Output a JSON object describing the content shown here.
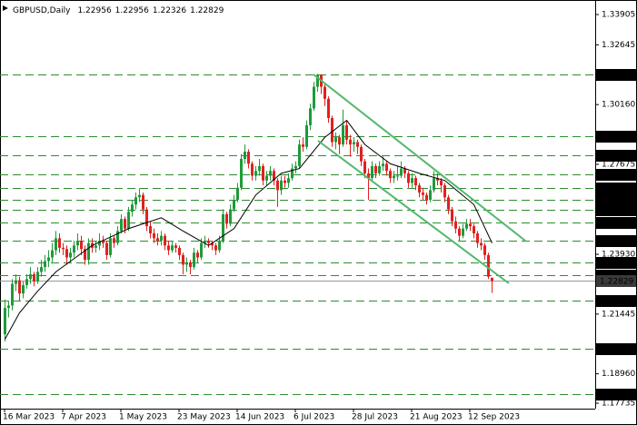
{
  "chart_data": {
    "type": "candlestick",
    "symbol": "GBPUSD,Daily",
    "ylim": [
      1.1751,
      1.3451
    ],
    "yticks": [
      1.33905,
      1.32645,
      {
        "value": 1.3016,
        "label": "1.30160"
      },
      1.27675,
      {
        "value": 1.2393,
        "label": "1.23930"
      },
      1.21445,
      {
        "value": 1.1896,
        "label": "1.18960"
      },
      1.17735
    ],
    "up_color": "#1f9a3a",
    "down_color": "#e0211f",
    "level_color": "#2e8b2e",
    "levels": [
      {
        "value": 1.314,
        "label": "1.31400"
      },
      {
        "value": 1.2885,
        "label": "1.28850"
      },
      {
        "value": 1.2805,
        "label": "1.28050"
      },
      {
        "value": 1.2727,
        "label": "1.27270"
      },
      {
        "value": 1.267,
        "label": "1.26700"
      },
      {
        "value": 1.262,
        "label": "1.26200"
      },
      {
        "value": 1.258,
        "label": "1.25800"
      },
      {
        "value": 1.2525,
        "label": "1.25250"
      },
      {
        "value": 1.245,
        "label": "1.24500"
      },
      {
        "value": 1.236,
        "label": "1.23600"
      },
      {
        "value": 1.2305,
        "label": "1.23050"
      },
      {
        "value": 1.22,
        "label": "1.22000"
      },
      {
        "value": 1.2,
        "label": "1.20000"
      },
      {
        "value": 1.181,
        "label": "1.18100"
      }
    ],
    "last_price": 1.22829,
    "categories": [
      "16 Mar 2023",
      null,
      null,
      null,
      null,
      null,
      null,
      null,
      null,
      null,
      null,
      null,
      null,
      null,
      null,
      null,
      "7 Apr 2023",
      null,
      null,
      null,
      null,
      null,
      null,
      null,
      null,
      null,
      null,
      null,
      null,
      null,
      null,
      null,
      "1 May 2023",
      null,
      null,
      null,
      null,
      null,
      null,
      null,
      null,
      null,
      null,
      null,
      null,
      null,
      null,
      null,
      "23 May 2023",
      null,
      null,
      null,
      null,
      null,
      null,
      null,
      null,
      null,
      null,
      null,
      null,
      null,
      null,
      null,
      "14 Jun 2023",
      null,
      null,
      null,
      null,
      null,
      null,
      null,
      null,
      null,
      null,
      null,
      null,
      null,
      null,
      null,
      "6 Jul 2023",
      null,
      null,
      null,
      null,
      null,
      null,
      null,
      null,
      null,
      null,
      null,
      null,
      null,
      null,
      null,
      "28 Jul 2023",
      null,
      null,
      null,
      null,
      null,
      null,
      null,
      null,
      null,
      null,
      null,
      null,
      null,
      null,
      null,
      "21 Aug 2023",
      null,
      null,
      null,
      null,
      null,
      null,
      null,
      null,
      null,
      null,
      null,
      null,
      null,
      null,
      null,
      "12 Sep 2023",
      null,
      null,
      null,
      null,
      null,
      null
    ],
    "candles": [
      [
        1.206,
        1.2205,
        1.203,
        1.217
      ],
      [
        1.217,
        1.22,
        1.213,
        1.218
      ],
      [
        1.218,
        1.229,
        1.216,
        1.227
      ],
      [
        1.227,
        1.231,
        1.224,
        1.2285
      ],
      [
        1.2285,
        1.23,
        1.22,
        1.223
      ],
      [
        1.223,
        1.228,
        1.221,
        1.2265
      ],
      [
        1.2265,
        1.231,
        1.225,
        1.229
      ],
      [
        1.229,
        1.234,
        1.227,
        1.231
      ],
      [
        1.231,
        1.232,
        1.226,
        1.228
      ],
      [
        1.228,
        1.234,
        1.227,
        1.232
      ],
      [
        1.232,
        1.237,
        1.23,
        1.234
      ],
      [
        1.234,
        1.239,
        1.232,
        1.2365
      ],
      [
        1.2365,
        1.241,
        1.234,
        1.238
      ],
      [
        1.238,
        1.244,
        1.236,
        1.241
      ],
      [
        1.241,
        1.249,
        1.239,
        1.246
      ],
      [
        1.246,
        1.248,
        1.24,
        1.242
      ],
      [
        1.242,
        1.244,
        1.239,
        1.2415
      ],
      [
        1.2415,
        1.243,
        1.235,
        1.238
      ],
      [
        1.238,
        1.242,
        1.236,
        1.24
      ],
      [
        1.24,
        1.245,
        1.238,
        1.243
      ],
      [
        1.243,
        1.248,
        1.241,
        1.245
      ],
      [
        1.245,
        1.247,
        1.239,
        1.2415
      ],
      [
        1.2415,
        1.243,
        1.235,
        1.237
      ],
      [
        1.237,
        1.246,
        1.235,
        1.244
      ],
      [
        1.244,
        1.246,
        1.24,
        1.242
      ],
      [
        1.242,
        1.245,
        1.24,
        1.243
      ],
      [
        1.243,
        1.248,
        1.241,
        1.245
      ],
      [
        1.245,
        1.247,
        1.242,
        1.244
      ],
      [
        1.244,
        1.245,
        1.237,
        1.239
      ],
      [
        1.239,
        1.248,
        1.238,
        1.246
      ],
      [
        1.246,
        1.247,
        1.242,
        1.244
      ],
      [
        1.244,
        1.251,
        1.243,
        1.249
      ],
      [
        1.249,
        1.256,
        1.248,
        1.254
      ],
      [
        1.254,
        1.255,
        1.248,
        1.25
      ],
      [
        1.25,
        1.259,
        1.249,
        1.257
      ],
      [
        1.257,
        1.262,
        1.255,
        1.26
      ],
      [
        1.26,
        1.265,
        1.258,
        1.263
      ],
      [
        1.263,
        1.2668,
        1.261,
        1.264
      ],
      [
        1.264,
        1.265,
        1.256,
        1.258
      ],
      [
        1.258,
        1.259,
        1.249,
        1.251
      ],
      [
        1.251,
        1.253,
        1.246,
        1.248
      ],
      [
        1.248,
        1.25,
        1.244,
        1.246
      ],
      [
        1.246,
        1.248,
        1.243,
        1.245
      ],
      [
        1.245,
        1.249,
        1.243,
        1.247
      ],
      [
        1.247,
        1.248,
        1.241,
        1.243
      ],
      [
        1.243,
        1.245,
        1.239,
        1.241
      ],
      [
        1.241,
        1.245,
        1.24,
        1.243
      ],
      [
        1.243,
        1.244,
        1.24,
        1.242
      ],
      [
        1.242,
        1.243,
        1.237,
        1.239
      ],
      [
        1.239,
        1.24,
        1.231,
        1.235
      ],
      [
        1.235,
        1.238,
        1.232,
        1.236
      ],
      [
        1.236,
        1.237,
        1.231,
        1.234
      ],
      [
        1.234,
        1.242,
        1.233,
        1.24
      ],
      [
        1.24,
        1.241,
        1.236,
        1.238
      ],
      [
        1.238,
        1.246,
        1.237,
        1.244
      ],
      [
        1.244,
        1.247,
        1.242,
        1.245
      ],
      [
        1.245,
        1.246,
        1.242,
        1.244
      ],
      [
        1.244,
        1.245,
        1.241,
        1.243
      ],
      [
        1.243,
        1.244,
        1.239,
        1.241
      ],
      [
        1.241,
        1.247,
        1.24,
        1.245
      ],
      [
        1.245,
        1.258,
        1.244,
        1.256
      ],
      [
        1.256,
        1.257,
        1.25,
        1.252
      ],
      [
        1.252,
        1.26,
        1.251,
        1.258
      ],
      [
        1.258,
        1.264,
        1.257,
        1.262
      ],
      [
        1.262,
        1.269,
        1.261,
        1.267
      ],
      [
        1.267,
        1.281,
        1.266,
        1.279
      ],
      [
        1.279,
        1.285,
        1.277,
        1.282
      ],
      [
        1.282,
        1.283,
        1.275,
        1.277
      ],
      [
        1.277,
        1.278,
        1.27,
        1.272
      ],
      [
        1.272,
        1.276,
        1.27,
        1.274
      ],
      [
        1.274,
        1.279,
        1.272,
        1.276
      ],
      [
        1.276,
        1.277,
        1.268,
        1.27
      ],
      [
        1.27,
        1.274,
        1.268,
        1.272
      ],
      [
        1.272,
        1.276,
        1.27,
        1.274
      ],
      [
        1.274,
        1.275,
        1.268,
        1.27
      ],
      [
        1.27,
        1.271,
        1.259,
        1.266
      ],
      [
        1.266,
        1.272,
        1.264,
        1.27
      ],
      [
        1.27,
        1.272,
        1.267,
        1.269
      ],
      [
        1.269,
        1.273,
        1.267,
        1.271
      ],
      [
        1.271,
        1.277,
        1.27,
        1.275
      ],
      [
        1.275,
        1.278,
        1.273,
        1.276
      ],
      [
        1.276,
        1.287,
        1.275,
        1.285
      ],
      [
        1.285,
        1.288,
        1.282,
        1.284
      ],
      [
        1.284,
        1.295,
        1.283,
        1.293
      ],
      [
        1.293,
        1.302,
        1.291,
        1.3
      ],
      [
        1.3,
        1.311,
        1.299,
        1.309
      ],
      [
        1.309,
        1.3144,
        1.307,
        1.314
      ],
      [
        1.314,
        1.3142,
        1.306,
        1.309
      ],
      [
        1.309,
        1.31,
        1.301,
        1.304
      ],
      [
        1.304,
        1.305,
        1.294,
        1.296
      ],
      [
        1.296,
        1.297,
        1.284,
        1.286
      ],
      [
        1.286,
        1.29,
        1.283,
        1.288
      ],
      [
        1.288,
        1.289,
        1.281,
        1.285
      ],
      [
        1.285,
        1.2995,
        1.284,
        1.293
      ],
      [
        1.293,
        1.295,
        1.285,
        1.287
      ],
      [
        1.287,
        1.289,
        1.28,
        1.285
      ],
      [
        1.285,
        1.288,
        1.282,
        1.286
      ],
      [
        1.286,
        1.287,
        1.281,
        1.284
      ],
      [
        1.284,
        1.285,
        1.276,
        1.278
      ],
      [
        1.278,
        1.279,
        1.271,
        1.273
      ],
      [
        1.273,
        1.275,
        1.262,
        1.271
      ],
      [
        1.271,
        1.278,
        1.27,
        1.276
      ],
      [
        1.276,
        1.277,
        1.271,
        1.273
      ],
      [
        1.273,
        1.278,
        1.272,
        1.276
      ],
      [
        1.276,
        1.28,
        1.274,
        1.277
      ],
      [
        1.277,
        1.278,
        1.272,
        1.274
      ],
      [
        1.274,
        1.275,
        1.269,
        1.271
      ],
      [
        1.271,
        1.274,
        1.269,
        1.272
      ],
      [
        1.272,
        1.276,
        1.27,
        1.272
      ],
      [
        1.272,
        1.278,
        1.271,
        1.275
      ],
      [
        1.275,
        1.276,
        1.271,
        1.273
      ],
      [
        1.273,
        1.274,
        1.267,
        1.269
      ],
      [
        1.269,
        1.273,
        1.267,
        1.271
      ],
      [
        1.271,
        1.272,
        1.266,
        1.268
      ],
      [
        1.268,
        1.269,
        1.263,
        1.265
      ],
      [
        1.265,
        1.267,
        1.262,
        1.264
      ],
      [
        1.264,
        1.265,
        1.26,
        1.262
      ],
      [
        1.262,
        1.268,
        1.261,
        1.266
      ],
      [
        1.266,
        1.274,
        1.265,
        1.271
      ],
      [
        1.271,
        1.273,
        1.268,
        1.27
      ],
      [
        1.27,
        1.271,
        1.265,
        1.268
      ],
      [
        1.268,
        1.269,
        1.261,
        1.263
      ],
      [
        1.263,
        1.264,
        1.256,
        1.258
      ],
      [
        1.258,
        1.259,
        1.251,
        1.253
      ],
      [
        1.253,
        1.255,
        1.248,
        1.25
      ],
      [
        1.25,
        1.251,
        1.245,
        1.247
      ],
      [
        1.247,
        1.252,
        1.246,
        1.25
      ],
      [
        1.25,
        1.254,
        1.249,
        1.252
      ],
      [
        1.252,
        1.254,
        1.249,
        1.251
      ],
      [
        1.251,
        1.252,
        1.246,
        1.248
      ],
      [
        1.248,
        1.249,
        1.242,
        1.244
      ],
      [
        1.244,
        1.246,
        1.241,
        1.243
      ],
      [
        1.243,
        1.244,
        1.237,
        1.239
      ],
      [
        1.239,
        1.24,
        1.229,
        1.23
      ],
      [
        1.22956,
        1.22956,
        1.22326,
        1.22829
      ]
    ],
    "ma": {
      "color": "#000000",
      "x": [
        0,
        4,
        9,
        14,
        24,
        34,
        43,
        49,
        56,
        63,
        69,
        76,
        81,
        88,
        94,
        99,
        106,
        114,
        121,
        129,
        134
      ],
      "values": [
        1.204,
        1.215,
        1.224,
        1.232,
        1.243,
        1.25,
        1.2545,
        1.249,
        1.243,
        1.25,
        1.264,
        1.273,
        1.275,
        1.288,
        1.295,
        1.285,
        1.277,
        1.273,
        1.27,
        1.26,
        1.244
      ]
    }
  }
}
